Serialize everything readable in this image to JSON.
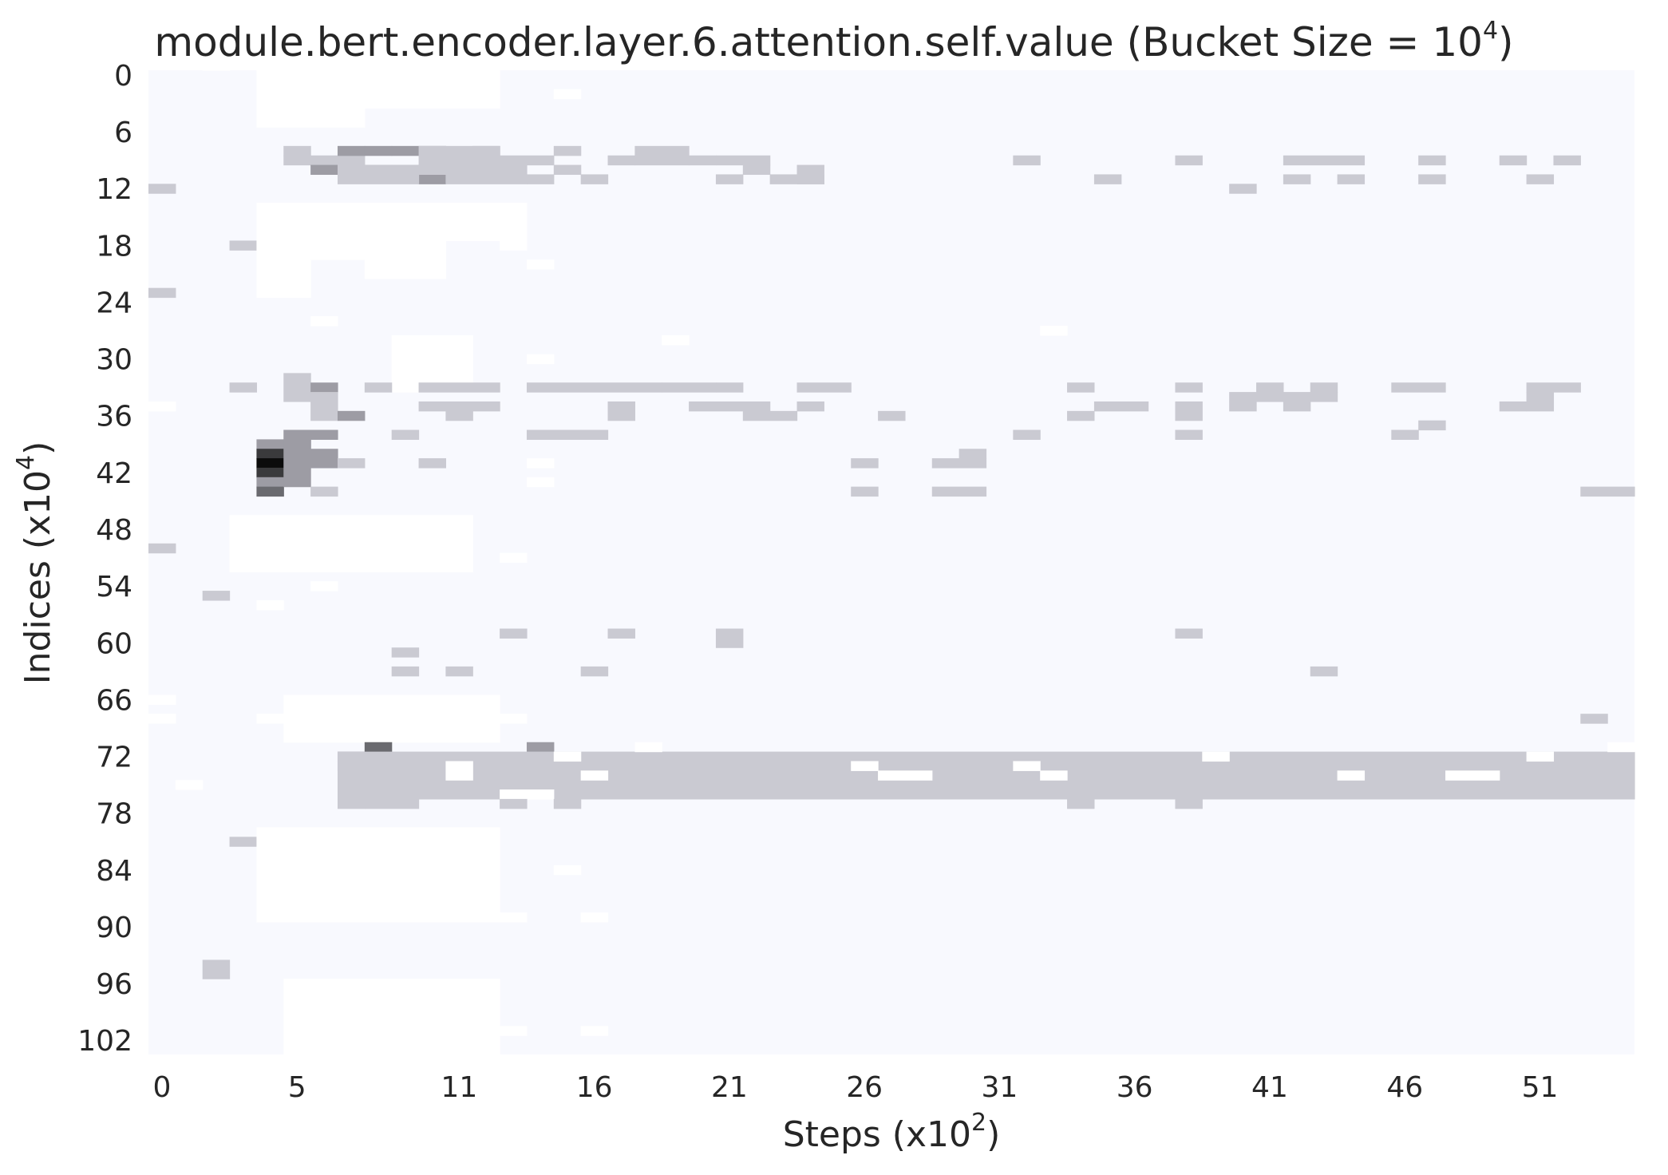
{
  "chart_data": {
    "type": "heatmap",
    "title": "module.bert.encoder.layer.6.attention.self.value (Bucket Size = 10",
    "title_sup": "4",
    "title_end": ")",
    "xlabel": "Steps (x10",
    "xlabel_sup": "2",
    "xlabel_end": ")",
    "ylabel": "Indices (x10",
    "ylabel_sup": "4",
    "ylabel_end": ")",
    "x_range": [
      0,
      55
    ],
    "y_range": [
      0,
      104
    ],
    "x_ticks": [
      0,
      5,
      11,
      16,
      21,
      26,
      31,
      36,
      41,
      46,
      51
    ],
    "y_ticks": [
      0,
      6,
      12,
      18,
      24,
      30,
      36,
      42,
      48,
      54,
      60,
      66,
      72,
      78,
      84,
      90,
      96,
      102
    ],
    "colors": {
      "background": "#f8f9fe",
      "white": "#ffffff",
      "light": "#cacad2",
      "mid": "#9d9ca4",
      "dark": "#6a6a6f",
      "darker": "#3a3a3c",
      "darkest": "#0b0b0b"
    },
    "cells": [
      [
        2,
        0,
        1,
        0,
        "white"
      ],
      [
        4,
        0,
        4,
        6,
        "white"
      ],
      [
        6,
        0,
        2,
        6,
        "white"
      ],
      [
        8,
        0,
        4,
        4,
        "white"
      ],
      [
        11,
        0,
        2,
        4,
        "white"
      ],
      [
        15,
        2,
        1,
        1,
        "white"
      ],
      [
        5,
        8,
        1,
        1,
        "light"
      ],
      [
        5,
        9,
        1,
        1,
        "light"
      ],
      [
        6,
        9,
        1,
        1,
        "light"
      ],
      [
        6,
        10,
        1,
        1,
        "mid"
      ],
      [
        7,
        9,
        1,
        1,
        "light"
      ],
      [
        7,
        8,
        1,
        1,
        "mid"
      ],
      [
        8,
        8,
        1,
        1,
        "mid"
      ],
      [
        9,
        8,
        2,
        1,
        "mid"
      ],
      [
        8,
        10,
        1,
        1,
        "mid"
      ],
      [
        9,
        10,
        2,
        1,
        "mid"
      ],
      [
        10,
        11,
        1,
        1,
        "mid"
      ],
      [
        7,
        10,
        3,
        2,
        "light"
      ],
      [
        10,
        8,
        3,
        3,
        "light"
      ],
      [
        11,
        10,
        3,
        2,
        "light"
      ],
      [
        12,
        8,
        1,
        1,
        "light"
      ],
      [
        13,
        9,
        2,
        1,
        "light"
      ],
      [
        14,
        11,
        1,
        1,
        "light"
      ],
      [
        15,
        8,
        1,
        1,
        "light"
      ],
      [
        15,
        10,
        1,
        1,
        "light"
      ],
      [
        16,
        11,
        1,
        1,
        "light"
      ],
      [
        17,
        9,
        1,
        1,
        "light"
      ],
      [
        18,
        8,
        2,
        2,
        "light"
      ],
      [
        20,
        9,
        1,
        1,
        "light"
      ],
      [
        21,
        11,
        1,
        1,
        "light"
      ],
      [
        21,
        9,
        2,
        1,
        "light"
      ],
      [
        22,
        10,
        1,
        1,
        "light"
      ],
      [
        23,
        11,
        2,
        1,
        "light"
      ],
      [
        24,
        10,
        1,
        2,
        "light"
      ],
      [
        0,
        12,
        1,
        1,
        "light"
      ],
      [
        32,
        9,
        1,
        1,
        "light"
      ],
      [
        35,
        11,
        1,
        1,
        "light"
      ],
      [
        38,
        9,
        1,
        1,
        "light"
      ],
      [
        40,
        12,
        1,
        1,
        "light"
      ],
      [
        42,
        9,
        3,
        1,
        "light"
      ],
      [
        42,
        11,
        1,
        1,
        "light"
      ],
      [
        44,
        11,
        1,
        1,
        "light"
      ],
      [
        47,
        9,
        1,
        1,
        "light"
      ],
      [
        47,
        11,
        1,
        1,
        "light"
      ],
      [
        50,
        9,
        1,
        1,
        "light"
      ],
      [
        51,
        11,
        1,
        1,
        "light"
      ],
      [
        52,
        9,
        1,
        1,
        "light"
      ],
      [
        3,
        18,
        1,
        1,
        "light"
      ],
      [
        4,
        14,
        2,
        10,
        "white"
      ],
      [
        6,
        14,
        2,
        6,
        "white"
      ],
      [
        8,
        14,
        3,
        8,
        "white"
      ],
      [
        11,
        14,
        3,
        4,
        "white"
      ],
      [
        13,
        18,
        1,
        1,
        "white"
      ],
      [
        14,
        20,
        1,
        1,
        "white"
      ],
      [
        0,
        23,
        1,
        1,
        "light"
      ],
      [
        19,
        28,
        1,
        1,
        "white"
      ],
      [
        6,
        26,
        1,
        1,
        "white"
      ],
      [
        9,
        28,
        3,
        6,
        "white"
      ],
      [
        14,
        30,
        1,
        1,
        "white"
      ],
      [
        3,
        33,
        1,
        1,
        "light"
      ],
      [
        5,
        32,
        1,
        3,
        "light"
      ],
      [
        6,
        33,
        1,
        1,
        "mid"
      ],
      [
        6,
        34,
        1,
        3,
        "light"
      ],
      [
        7,
        36,
        1,
        1,
        "mid"
      ],
      [
        8,
        33,
        1,
        1,
        "light"
      ],
      [
        10,
        33,
        3,
        1,
        "light"
      ],
      [
        10,
        35,
        3,
        1,
        "light"
      ],
      [
        11,
        36,
        1,
        1,
        "light"
      ],
      [
        14,
        38,
        2,
        1,
        "light"
      ],
      [
        14,
        33,
        5,
        1,
        "light"
      ],
      [
        17,
        35,
        1,
        2,
        "light"
      ],
      [
        19,
        33,
        2,
        1,
        "light"
      ],
      [
        20,
        35,
        3,
        1,
        "light"
      ],
      [
        21,
        33,
        1,
        1,
        "light"
      ],
      [
        22,
        36,
        2,
        1,
        "light"
      ],
      [
        24,
        33,
        2,
        1,
        "light"
      ],
      [
        24,
        35,
        1,
        1,
        "light"
      ],
      [
        27,
        36,
        1,
        1,
        "light"
      ],
      [
        32,
        38,
        1,
        1,
        "light"
      ],
      [
        34,
        33,
        1,
        1,
        "light"
      ],
      [
        34,
        36,
        1,
        1,
        "light"
      ],
      [
        35,
        35,
        2,
        1,
        "light"
      ],
      [
        38,
        33,
        1,
        1,
        "light"
      ],
      [
        38,
        35,
        1,
        2,
        "light"
      ],
      [
        38,
        38,
        1,
        1,
        "light"
      ],
      [
        40,
        34,
        3,
        1,
        "light"
      ],
      [
        41,
        33,
        1,
        1,
        "light"
      ],
      [
        40,
        35,
        1,
        1,
        "light"
      ],
      [
        42,
        35,
        1,
        1,
        "light"
      ],
      [
        43,
        33,
        1,
        1,
        "light"
      ],
      [
        43,
        34,
        1,
        1,
        "light"
      ],
      [
        46,
        33,
        2,
        1,
        "light"
      ],
      [
        46,
        38,
        1,
        1,
        "light"
      ],
      [
        47,
        37,
        1,
        1,
        "light"
      ],
      [
        51,
        33,
        2,
        1,
        "light"
      ],
      [
        50,
        35,
        1,
        1,
        "light"
      ],
      [
        51,
        34,
        1,
        2,
        "light"
      ],
      [
        0,
        35,
        1,
        1,
        "white"
      ],
      [
        9,
        38,
        1,
        1,
        "light"
      ],
      [
        16,
        38,
        1,
        1,
        "light"
      ],
      [
        33,
        27,
        1,
        1,
        "white"
      ],
      [
        5,
        38,
        2,
        1,
        "mid"
      ],
      [
        4,
        39,
        2,
        1,
        "mid"
      ],
      [
        4,
        40,
        1,
        1,
        "darker"
      ],
      [
        4,
        41,
        1,
        1,
        "darkest"
      ],
      [
        4,
        42,
        1,
        1,
        "darker"
      ],
      [
        4,
        43,
        1,
        1,
        "mid"
      ],
      [
        4,
        44,
        1,
        1,
        "dark"
      ],
      [
        5,
        39,
        1,
        5,
        "mid"
      ],
      [
        6,
        40,
        1,
        2,
        "mid"
      ],
      [
        6,
        44,
        1,
        1,
        "light"
      ],
      [
        7,
        41,
        1,
        1,
        "light"
      ],
      [
        10,
        41,
        1,
        1,
        "light"
      ],
      [
        26,
        41,
        1,
        1,
        "light"
      ],
      [
        26,
        44,
        1,
        1,
        "light"
      ],
      [
        29,
        41,
        2,
        1,
        "light"
      ],
      [
        29,
        44,
        2,
        1,
        "light"
      ],
      [
        30,
        40,
        1,
        1,
        "light"
      ],
      [
        53,
        44,
        2,
        1,
        "light"
      ],
      [
        14,
        41,
        1,
        1,
        "white"
      ],
      [
        14,
        43,
        1,
        1,
        "white"
      ],
      [
        0,
        50,
        1,
        1,
        "light"
      ],
      [
        3,
        47,
        9,
        6,
        "white"
      ],
      [
        13,
        51,
        1,
        1,
        "white"
      ],
      [
        2,
        55,
        1,
        1,
        "light"
      ],
      [
        4,
        56,
        1,
        1,
        "white"
      ],
      [
        6,
        54,
        1,
        1,
        "white"
      ],
      [
        13,
        59,
        1,
        1,
        "light"
      ],
      [
        17,
        59,
        1,
        1,
        "light"
      ],
      [
        21,
        59,
        1,
        2,
        "light"
      ],
      [
        38,
        59,
        1,
        1,
        "light"
      ],
      [
        9,
        61,
        1,
        1,
        "light"
      ],
      [
        9,
        63,
        1,
        1,
        "light"
      ],
      [
        11,
        63,
        1,
        1,
        "light"
      ],
      [
        16,
        63,
        1,
        1,
        "light"
      ],
      [
        43,
        63,
        1,
        1,
        "light"
      ],
      [
        0,
        66,
        1,
        1,
        "white"
      ],
      [
        0,
        68,
        1,
        1,
        "white"
      ],
      [
        5,
        66,
        8,
        5,
        "white"
      ],
      [
        4,
        68,
        1,
        1,
        "white"
      ],
      [
        13,
        68,
        1,
        1,
        "white"
      ],
      [
        53,
        68,
        1,
        1,
        "light"
      ],
      [
        7,
        72,
        1,
        1,
        "mid"
      ],
      [
        8,
        71,
        1,
        1,
        "dark"
      ],
      [
        7,
        73,
        1,
        1,
        "mid"
      ],
      [
        8,
        73,
        1,
        1,
        "mid"
      ],
      [
        14,
        71,
        1,
        1,
        "mid"
      ],
      [
        22,
        75,
        1,
        1,
        "dark"
      ],
      [
        1,
        75,
        1,
        1,
        "white"
      ],
      [
        7,
        72,
        48,
        5,
        "light"
      ],
      [
        7,
        77,
        1,
        1,
        "light"
      ],
      [
        11,
        73,
        1,
        2,
        "white"
      ],
      [
        13,
        76,
        2,
        1,
        "white"
      ],
      [
        15,
        72,
        1,
        1,
        "white"
      ],
      [
        16,
        74,
        1,
        1,
        "white"
      ],
      [
        18,
        71,
        1,
        1,
        "white"
      ],
      [
        26,
        73,
        1,
        1,
        "white"
      ],
      [
        27,
        74,
        2,
        1,
        "white"
      ],
      [
        32,
        73,
        1,
        1,
        "white"
      ],
      [
        33,
        74,
        1,
        1,
        "white"
      ],
      [
        39,
        72,
        1,
        1,
        "white"
      ],
      [
        44,
        74,
        1,
        1,
        "white"
      ],
      [
        48,
        74,
        2,
        1,
        "white"
      ],
      [
        51,
        72,
        1,
        1,
        "white"
      ],
      [
        54,
        71,
        1,
        1,
        "white"
      ],
      [
        8,
        77,
        2,
        1,
        "light"
      ],
      [
        13,
        77,
        1,
        1,
        "light"
      ],
      [
        15,
        77,
        1,
        1,
        "light"
      ],
      [
        34,
        77,
        1,
        1,
        "light"
      ],
      [
        38,
        77,
        1,
        1,
        "light"
      ],
      [
        3,
        81,
        1,
        1,
        "light"
      ],
      [
        4,
        80,
        9,
        10,
        "white"
      ],
      [
        13,
        89,
        1,
        1,
        "white"
      ],
      [
        16,
        89,
        1,
        1,
        "white"
      ],
      [
        15,
        84,
        1,
        1,
        "white"
      ],
      [
        2,
        94,
        1,
        2,
        "light"
      ],
      [
        5,
        96,
        8,
        8,
        "white"
      ],
      [
        16,
        101,
        1,
        1,
        "white"
      ],
      [
        13,
        101,
        1,
        1,
        "white"
      ]
    ]
  }
}
